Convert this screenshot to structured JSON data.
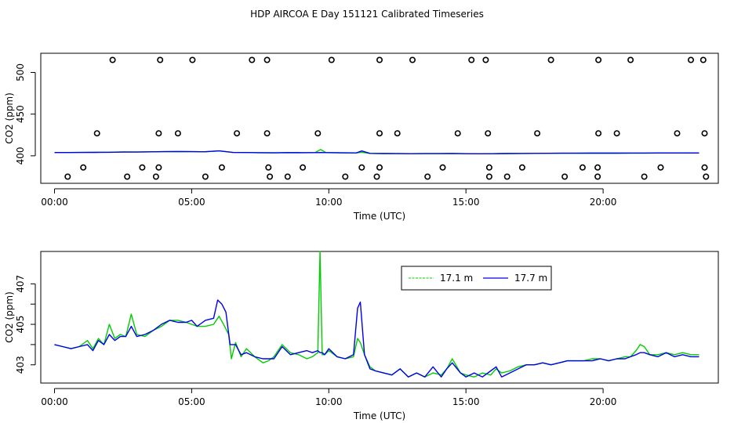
{
  "title": "HDP AIRCOA E  Day 151121  Calibrated Timeseries",
  "colors": {
    "green": "#00cc00",
    "blue": "#0000ee",
    "frame": "#000000"
  },
  "chart_data": [
    {
      "type": "scatter",
      "xlabel": "Time (UTC)",
      "ylabel": "CO2 (ppm)",
      "xlim": [
        -0.5,
        24.2
      ],
      "ylim": [
        367,
        523
      ],
      "x_ticks": [
        0,
        5,
        10,
        15,
        20
      ],
      "x_tick_labels": [
        "00:00",
        "05:00",
        "10:00",
        "15:00",
        "20:00"
      ],
      "y_ticks": [
        400,
        450,
        500
      ],
      "y_tick_labels": [
        "400",
        "450",
        "500"
      ],
      "grid": false,
      "legend": "none",
      "points_series": {
        "name": "",
        "marker": "open-circle",
        "x": [
          2.12,
          3.85,
          5.03,
          7.2,
          7.75,
          10.1,
          11.85,
          13.05,
          15.2,
          15.72,
          18.1,
          19.83,
          21.0,
          23.2,
          23.65,
          1.55,
          3.8,
          4.5,
          6.65,
          7.75,
          9.6,
          11.85,
          12.5,
          14.7,
          15.8,
          17.6,
          19.83,
          20.5,
          22.7,
          23.7,
          1.05,
          3.2,
          3.8,
          6.1,
          7.8,
          9.05,
          11.2,
          11.85,
          14.15,
          15.85,
          17.05,
          19.25,
          19.8,
          22.1,
          23.7,
          0.48,
          2.65,
          3.7,
          5.5,
          7.85,
          8.5,
          10.6,
          11.75,
          13.6,
          15.85,
          16.5,
          18.6,
          19.8,
          21.5,
          23.75
        ],
        "y": [
          515,
          515,
          515,
          515,
          515,
          515,
          515,
          515,
          515,
          515,
          515,
          515,
          515,
          515,
          515,
          427,
          427,
          427,
          427,
          427,
          427,
          427,
          427,
          427,
          427,
          427,
          427,
          427,
          427,
          427,
          386,
          386,
          386,
          386,
          386,
          386,
          386,
          386,
          386,
          386,
          386,
          386,
          386,
          386,
          386,
          375,
          375,
          375,
          375,
          375,
          375,
          375,
          375,
          375,
          375,
          375,
          375,
          375,
          375,
          375
        ]
      },
      "series": [
        {
          "name": "17.1 m",
          "color": "#00cc00",
          "x": [
            0.0,
            0.5,
            1.0,
            1.5,
            2.0,
            2.5,
            3.0,
            3.5,
            4.0,
            4.5,
            5.0,
            5.5,
            6.0,
            6.5,
            7.0,
            7.5,
            8.0,
            8.5,
            9.0,
            9.5,
            9.7,
            9.9,
            10.5,
            11.0,
            11.2,
            11.5,
            12.0,
            12.5,
            13.0,
            13.5,
            14.0,
            14.5,
            15.0,
            15.5,
            16.0,
            16.5,
            17.0,
            17.5,
            18.0,
            18.5,
            19.0,
            19.5,
            20.0,
            20.5,
            21.0,
            21.5,
            22.0,
            22.5,
            23.0,
            23.5
          ],
          "y": [
            403.9,
            403.9,
            404.0,
            404.1,
            404.3,
            404.6,
            404.5,
            404.8,
            405.0,
            405.1,
            405.0,
            404.9,
            405.8,
            404.0,
            403.9,
            403.7,
            403.6,
            403.8,
            403.7,
            403.8,
            407.5,
            403.8,
            403.6,
            403.5,
            404.2,
            402.9,
            402.7,
            402.6,
            402.5,
            402.6,
            402.6,
            402.8,
            402.5,
            402.4,
            402.5,
            402.7,
            402.8,
            402.9,
            403.0,
            403.1,
            403.1,
            403.2,
            403.2,
            403.2,
            403.3,
            403.3,
            403.4,
            403.4,
            403.5,
            403.4
          ]
        },
        {
          "name": "17.7 m",
          "color": "#0000ee",
          "x": [
            0.0,
            0.5,
            1.0,
            1.5,
            2.0,
            2.5,
            3.0,
            3.5,
            4.0,
            4.5,
            5.0,
            5.5,
            6.0,
            6.5,
            7.0,
            7.5,
            8.0,
            8.5,
            9.0,
            9.5,
            9.7,
            9.9,
            10.5,
            11.0,
            11.2,
            11.5,
            12.0,
            12.5,
            13.0,
            13.5,
            14.0,
            14.5,
            15.0,
            15.5,
            16.0,
            16.5,
            17.0,
            17.5,
            18.0,
            18.5,
            19.0,
            19.5,
            20.0,
            20.5,
            21.0,
            21.5,
            22.0,
            22.5,
            23.0,
            23.5
          ],
          "y": [
            403.9,
            403.9,
            404.0,
            404.1,
            404.2,
            404.5,
            404.5,
            404.8,
            405.0,
            405.1,
            405.0,
            404.9,
            405.9,
            404.0,
            403.9,
            403.7,
            403.6,
            403.8,
            403.7,
            403.8,
            403.9,
            403.8,
            403.6,
            403.5,
            405.8,
            402.9,
            402.7,
            402.6,
            402.5,
            402.6,
            402.6,
            402.8,
            402.5,
            402.4,
            402.5,
            402.7,
            402.8,
            402.9,
            403.0,
            403.1,
            403.1,
            403.2,
            403.2,
            403.2,
            403.3,
            403.3,
            403.4,
            403.4,
            403.4,
            403.4
          ]
        }
      ]
    },
    {
      "type": "line",
      "xlabel": "Time (UTC)",
      "ylabel": "CO2 (ppm)",
      "xlim": [
        -0.5,
        24.2
      ],
      "ylim": [
        402.1,
        408.6
      ],
      "x_ticks": [
        0,
        5,
        10,
        15,
        20
      ],
      "x_tick_labels": [
        "00:00",
        "05:00",
        "10:00",
        "15:00",
        "20:00"
      ],
      "y_ticks": [
        403,
        404,
        405,
        406,
        407
      ],
      "y_tick_labels": [
        "403",
        "",
        "405",
        "",
        "407"
      ],
      "grid": false,
      "legend": "top-center",
      "series": [
        {
          "name": "17.1 m",
          "color": "#00cc00",
          "x": [
            0.0,
            0.3,
            0.6,
            0.9,
            1.2,
            1.4,
            1.6,
            1.8,
            2.0,
            2.2,
            2.4,
            2.6,
            2.8,
            3.0,
            3.3,
            3.6,
            3.9,
            4.2,
            4.5,
            4.8,
            5.0,
            5.2,
            5.5,
            5.8,
            6.0,
            6.2,
            6.35,
            6.45,
            6.6,
            6.8,
            7.0,
            7.3,
            7.6,
            7.8,
            8.0,
            8.3,
            8.6,
            8.9,
            9.2,
            9.4,
            9.6,
            9.68,
            9.76,
            9.85,
            10.0,
            10.3,
            10.6,
            10.9,
            11.05,
            11.15,
            11.3,
            11.5,
            11.7,
            12.0,
            12.3,
            12.6,
            12.9,
            13.2,
            13.5,
            13.8,
            14.1,
            14.3,
            14.5,
            14.8,
            15.0,
            15.3,
            15.6,
            15.9,
            16.1,
            16.3,
            16.6,
            16.9,
            17.2,
            17.5,
            17.8,
            18.1,
            18.4,
            18.7,
            19.0,
            19.3,
            19.6,
            19.9,
            20.2,
            20.5,
            20.8,
            21.0,
            21.2,
            21.35,
            21.5,
            21.7,
            22.0,
            22.3,
            22.6,
            22.9,
            23.2,
            23.5
          ],
          "y": [
            404.0,
            403.9,
            403.8,
            403.9,
            404.2,
            403.8,
            404.3,
            404.0,
            405.0,
            404.3,
            404.5,
            404.4,
            405.5,
            404.5,
            404.4,
            404.7,
            404.9,
            405.2,
            405.2,
            405.1,
            405.0,
            404.9,
            404.9,
            405.0,
            405.4,
            404.9,
            404.5,
            403.3,
            404.1,
            403.4,
            403.8,
            403.4,
            403.1,
            403.2,
            403.4,
            404.0,
            403.6,
            403.5,
            403.3,
            403.4,
            403.6,
            408.6,
            403.5,
            403.5,
            403.7,
            403.4,
            403.3,
            403.4,
            404.3,
            404.1,
            403.5,
            402.9,
            402.7,
            402.6,
            402.5,
            402.8,
            402.4,
            402.6,
            402.4,
            402.6,
            402.5,
            402.8,
            403.3,
            402.6,
            402.5,
            402.4,
            402.6,
            402.5,
            402.8,
            402.6,
            402.7,
            402.9,
            403.0,
            403.0,
            403.1,
            403.0,
            403.1,
            403.2,
            403.2,
            403.2,
            403.3,
            403.3,
            403.2,
            403.3,
            403.4,
            403.4,
            403.7,
            404.0,
            403.9,
            403.5,
            403.5,
            403.6,
            403.5,
            403.6,
            403.5,
            403.5
          ]
        },
        {
          "name": "17.7 m",
          "color": "#0000ee",
          "x": [
            0.0,
            0.3,
            0.6,
            0.9,
            1.2,
            1.4,
            1.6,
            1.8,
            2.0,
            2.2,
            2.4,
            2.6,
            2.8,
            3.0,
            3.3,
            3.6,
            3.9,
            4.2,
            4.5,
            4.8,
            5.0,
            5.2,
            5.5,
            5.8,
            5.95,
            6.1,
            6.25,
            6.4,
            6.6,
            6.8,
            7.0,
            7.3,
            7.6,
            7.8,
            8.0,
            8.3,
            8.6,
            8.9,
            9.2,
            9.4,
            9.6,
            9.68,
            9.76,
            9.85,
            10.0,
            10.3,
            10.6,
            10.9,
            11.05,
            11.15,
            11.3,
            11.5,
            11.7,
            12.0,
            12.3,
            12.6,
            12.9,
            13.2,
            13.5,
            13.8,
            14.1,
            14.3,
            14.5,
            14.8,
            15.0,
            15.3,
            15.6,
            15.9,
            16.1,
            16.3,
            16.6,
            16.9,
            17.2,
            17.5,
            17.8,
            18.1,
            18.4,
            18.7,
            19.0,
            19.3,
            19.6,
            19.9,
            20.2,
            20.5,
            20.8,
            21.0,
            21.2,
            21.35,
            21.5,
            21.7,
            22.0,
            22.3,
            22.6,
            22.9,
            23.2,
            23.5
          ],
          "y": [
            404.0,
            403.9,
            403.8,
            403.9,
            404.0,
            403.7,
            404.2,
            404.0,
            404.5,
            404.2,
            404.4,
            404.4,
            404.9,
            404.4,
            404.5,
            404.7,
            405.0,
            405.2,
            405.1,
            405.1,
            405.2,
            404.9,
            405.2,
            405.3,
            406.2,
            406.0,
            405.6,
            404.0,
            404.0,
            403.5,
            403.6,
            403.4,
            403.3,
            403.3,
            403.3,
            403.9,
            403.5,
            403.6,
            403.7,
            403.6,
            403.7,
            403.6,
            403.6,
            403.5,
            403.8,
            403.4,
            403.3,
            403.5,
            405.8,
            406.1,
            403.5,
            402.8,
            402.7,
            402.6,
            402.5,
            402.8,
            402.4,
            402.6,
            402.4,
            402.9,
            402.4,
            402.8,
            403.1,
            402.6,
            402.4,
            402.6,
            402.4,
            402.7,
            402.9,
            402.4,
            402.6,
            402.8,
            403.0,
            403.0,
            403.1,
            403.0,
            403.1,
            403.2,
            403.2,
            403.2,
            403.2,
            403.3,
            403.2,
            403.3,
            403.3,
            403.4,
            403.5,
            403.6,
            403.6,
            403.5,
            403.4,
            403.6,
            403.4,
            403.5,
            403.4,
            403.4
          ]
        }
      ]
    }
  ]
}
